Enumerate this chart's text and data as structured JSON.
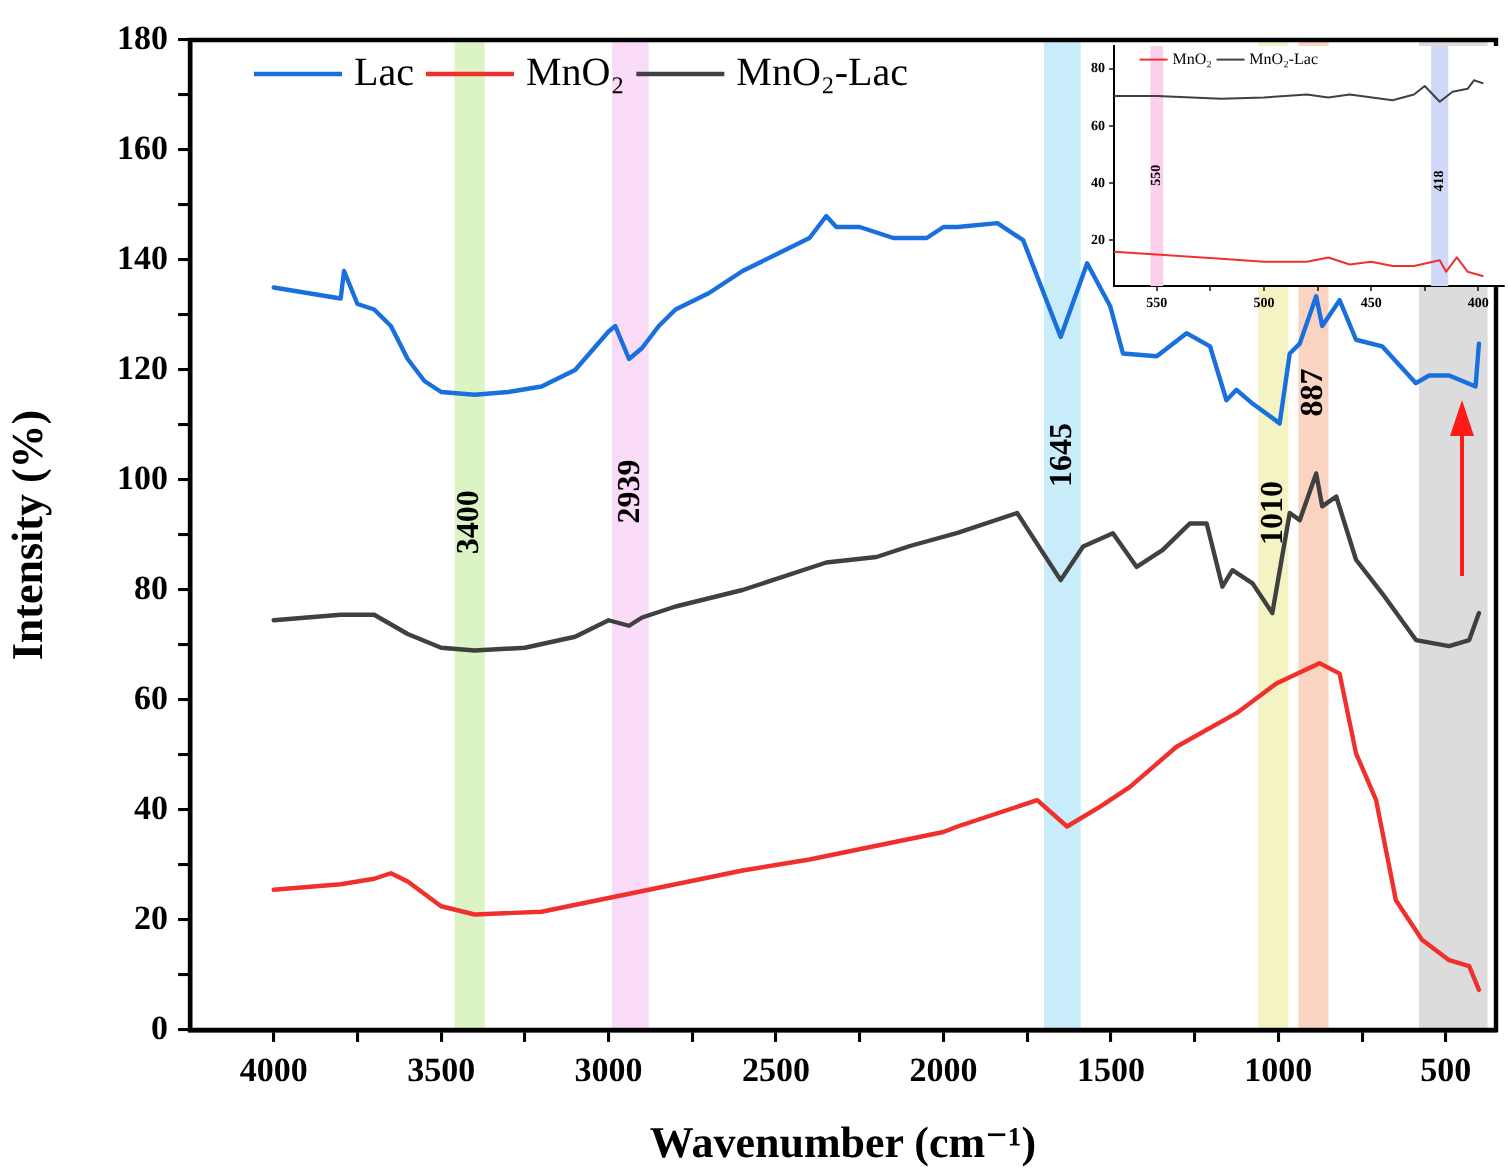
{
  "chart_data": [
    {
      "type": "line",
      "xlabel": "Wavenumber (cm⁻¹)",
      "ylabel": "Intensity (%)",
      "xlim": [
        4250,
        350
      ],
      "ylim": [
        0,
        180
      ],
      "xticks": [
        4000,
        {
          "value": 3750,
          "label": null
        },
        3500,
        {
          "value": 3250,
          "label": null
        },
        3000,
        {
          "value": 2750,
          "label": null
        },
        2500,
        {
          "value": 2250,
          "label": null
        },
        2000,
        {
          "value": 1750,
          "label": null
        },
        1500,
        {
          "value": 1250,
          "label": null
        },
        1000,
        {
          "value": 750,
          "label": null
        },
        500
      ],
      "yticks": [
        0,
        {
          "value": 10,
          "label": null
        },
        20,
        {
          "value": 30,
          "label": null
        },
        40,
        {
          "value": 50,
          "label": null
        },
        60,
        {
          "value": 70,
          "label": null
        },
        80,
        {
          "value": 90,
          "label": null
        },
        100,
        {
          "value": 110,
          "label": null
        },
        120,
        {
          "value": 130,
          "label": null
        },
        140,
        {
          "value": 150,
          "label": null
        },
        160,
        {
          "value": 170,
          "label": null
        },
        180
      ],
      "legend": "top left",
      "series": [
        {
          "name": "Lac",
          "color": "#1a6fdf",
          "x": [
            4000,
            3900,
            3800,
            3790,
            3750,
            3700,
            3650,
            3600,
            3550,
            3500,
            3400,
            3300,
            3200,
            3100,
            3000,
            2980,
            2939,
            2900,
            2850,
            2800,
            2700,
            2600,
            2500,
            2400,
            2350,
            2320,
            2250,
            2150,
            2050,
            2000,
            1958,
            1839,
            1762,
            1650,
            1571,
            1502,
            1464,
            1363,
            1274,
            1204,
            1155,
            1125,
            1077,
            996,
            966,
            936,
            887,
            869,
            817,
            768,
            690,
            589,
            550,
            490,
            411,
            401
          ],
          "values": [
            135,
            134,
            133,
            138,
            132,
            131,
            128,
            122,
            118,
            116,
            115.5,
            116,
            117,
            120,
            127,
            128,
            122,
            124,
            128,
            131,
            134,
            138,
            141,
            144,
            148,
            146,
            146,
            144,
            144,
            146,
            146,
            146.7,
            143.6,
            126,
            139.4,
            131.6,
            123,
            122.5,
            126.7,
            124.3,
            114.5,
            116.4,
            113.9,
            110.3,
            123,
            124.8,
            133.4,
            128,
            132.7,
            125.5,
            124.3,
            117.6,
            119,
            119,
            117,
            124.8
          ]
        },
        {
          "name": "MnO₂",
          "color": "#f0302c",
          "x": [
            4000,
            3800,
            3700,
            3650,
            3600,
            3500,
            3400,
            3200,
            3000,
            2800,
            2600,
            2400,
            2200,
            2000,
            1958,
            1720,
            1631,
            1532,
            1443,
            1304,
            1125,
            1006,
            877,
            817,
            768,
            708,
            649,
            571,
            490,
            430,
            401
          ],
          "values": [
            25.5,
            26.5,
            27.5,
            28.5,
            27,
            22.5,
            21,
            21.5,
            24,
            26.5,
            29,
            31,
            33.5,
            36,
            37,
            41.8,
            37,
            40.6,
            44.2,
            51.5,
            57.6,
            63,
            66.7,
            64.8,
            50.3,
            41.8,
            23.6,
            16.4,
            12.7,
            11.6,
            7.3
          ]
        },
        {
          "name": "MnO₂-Lac",
          "color": "#404040",
          "x": [
            4000,
            3800,
            3700,
            3600,
            3500,
            3400,
            3250,
            3100,
            3000,
            2939,
            2900,
            2800,
            2600,
            2400,
            2350,
            2200,
            2100,
            1958,
            1780,
            1650,
            1583,
            1494,
            1423,
            1345,
            1264,
            1214,
            1167,
            1137,
            1077,
            1018,
            966,
            936,
            887,
            869,
            827,
            768,
            690,
            589,
            490,
            430,
            401
          ],
          "values": [
            74.5,
            75.5,
            75.5,
            72,
            69.5,
            69,
            69.5,
            71.5,
            74.5,
            73.5,
            75,
            77,
            80,
            84,
            85,
            86,
            88,
            90.4,
            94,
            81.8,
            87.9,
            90.3,
            84.2,
            87.3,
            92.1,
            92.1,
            80.6,
            83.6,
            81.2,
            75.8,
            94,
            92.7,
            101.2,
            95.2,
            97,
            85.5,
            79.4,
            70.9,
            69.8,
            70.9,
            75.8
          ]
        }
      ],
      "bands": [
        {
          "axis": "x",
          "from": 3460,
          "to": 3370,
          "color": "#dcf3c4",
          "label": "3400"
        },
        {
          "axis": "x",
          "from": 2990,
          "to": 2880,
          "color": "#fbdcf8",
          "label": "2939"
        },
        {
          "axis": "x",
          "from": 1700,
          "to": 1590,
          "color": "#c9ecfb",
          "label": "1645"
        },
        {
          "axis": "x",
          "from": 1060,
          "to": 970,
          "color": "#f3f3c4",
          "label": "1010"
        },
        {
          "axis": "x",
          "from": 940,
          "to": 850,
          "color": "#fad4c0",
          "label": "887"
        },
        {
          "axis": "x",
          "from": 580,
          "to": 375,
          "color": "#dcdcdc"
        }
      ]
    },
    {
      "type": "line",
      "xlim": [
        570,
        388
      ],
      "ylim": [
        4,
        88
      ],
      "xticks": [
        550,
        {
          "value": 525,
          "label": null
        },
        500,
        {
          "value": 475,
          "label": null
        },
        450,
        {
          "value": 425,
          "label": null
        },
        400
      ],
      "yticks": [
        20,
        40,
        60,
        80
      ],
      "legend": "top left",
      "series": [
        {
          "name": "MnO₂",
          "color": "#f0302c",
          "x": [
            570,
            550,
            520,
            500,
            480,
            470,
            460,
            450,
            440,
            430,
            418,
            415,
            410,
            405,
            398
          ],
          "values": [
            16,
            15,
            13.5,
            12.5,
            12.5,
            14,
            11.5,
            12.5,
            11,
            11,
            13,
            9,
            14,
            9,
            7.5
          ]
        },
        {
          "name": "MnO₂-Lac",
          "color": "#404040",
          "x": [
            570,
            550,
            520,
            500,
            480,
            470,
            460,
            440,
            430,
            425,
            418,
            412,
            405,
            402,
            398
          ],
          "values": [
            70.5,
            70.5,
            69.5,
            70,
            71,
            70,
            71,
            69,
            71,
            74,
            68.5,
            72,
            73,
            76,
            75
          ]
        }
      ],
      "bands": [
        {
          "axis": "x",
          "from": 553,
          "to": 547,
          "color": "#fbd0ec",
          "label": "550"
        },
        {
          "axis": "x",
          "from": 422,
          "to": 414,
          "color": "#d0d8f8",
          "label": "418"
        }
      ]
    }
  ]
}
